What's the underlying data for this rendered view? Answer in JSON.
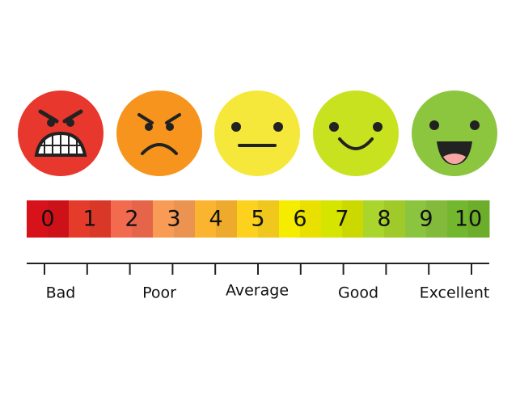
{
  "scale": {
    "cells": [
      "0",
      "1",
      "2",
      "3",
      "4",
      "5",
      "6",
      "7",
      "8",
      "9",
      "10"
    ]
  },
  "labels": [
    "Bad",
    "Poor",
    "Average",
    "Good",
    "Excellent"
  ]
}
